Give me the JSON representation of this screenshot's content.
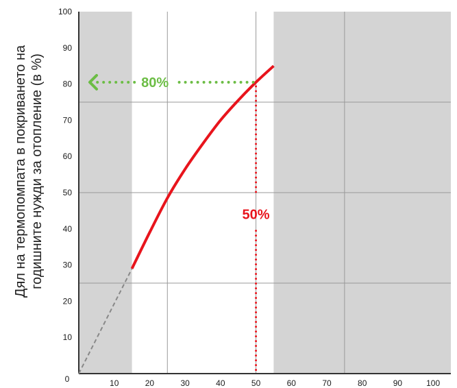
{
  "chart_data": {
    "type": "line",
    "ylabel_lines": [
      "Дял на термопомпата в покриването на",
      "годишните нужди за отопление  (в %)"
    ],
    "xlabel": "",
    "xlim": [
      0,
      105
    ],
    "ylim": [
      0,
      100
    ],
    "x_ticks": [
      "10",
      "20",
      "30",
      "40",
      "50",
      "60",
      "70",
      "80",
      "90",
      "100"
    ],
    "y_ticks": [
      "10",
      "20",
      "30",
      "40",
      "50",
      "60",
      "70",
      "80",
      "90",
      "100"
    ],
    "origin_label": "0",
    "grid": true,
    "shaded_bands_x": [
      [
        0,
        15
      ],
      [
        55,
        105
      ]
    ],
    "series": [
      {
        "style": "solid",
        "color": "#e8141c",
        "x": [
          15,
          20,
          25,
          30,
          35,
          40,
          45,
          50,
          55
        ],
        "y": [
          29,
          39,
          48.5,
          56.5,
          63.5,
          70,
          75.5,
          80.5,
          85
        ]
      },
      {
        "style": "dashed",
        "color": "#888888",
        "x": [
          0,
          15
        ],
        "y": [
          0,
          29
        ]
      }
    ],
    "annotations": [
      {
        "text": "80%",
        "color": "#6cbd45",
        "direction": "horizontal",
        "y": 80.5,
        "x_from": 50,
        "x_to": 0
      },
      {
        "text": "50%",
        "color": "#e8141c",
        "direction": "vertical",
        "x": 50,
        "y_from": 80.5,
        "y_to": 0
      }
    ],
    "colors": {
      "shade": "#d4d4d4",
      "grid": "#999999",
      "axis": "#333333",
      "curve": "#e8141c",
      "green": "#6cbd45"
    }
  }
}
